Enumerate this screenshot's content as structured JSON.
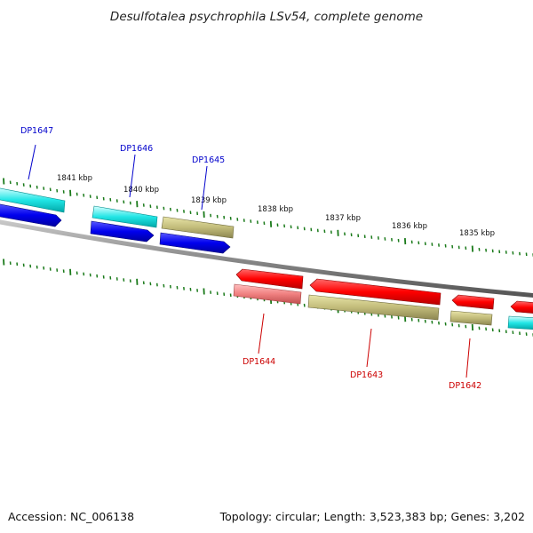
{
  "title": "Desulfotalea psychrophila LSv54, complete genome",
  "footer": {
    "accession": "Accession: NC_006138",
    "summary": "Topology: circular; Length: 3,523,383 bp; Genes: 3,202"
  },
  "colors": {
    "backbone": "#8a8a8a",
    "tick": "#1a7a1a",
    "plus_label": "#0000cc",
    "minus_label": "#cc0000"
  },
  "ticks": [
    {
      "label": "1841 kbp"
    },
    {
      "label": "1840 kbp"
    },
    {
      "label": "1839 kbp"
    },
    {
      "label": "1838 kbp"
    },
    {
      "label": "1837 kbp"
    },
    {
      "label": "1836 kbp"
    },
    {
      "label": "1835 kbp"
    }
  ],
  "gene_labels": [
    {
      "text": "DP1647",
      "strand": "plus"
    },
    {
      "text": "DP1646",
      "strand": "plus"
    },
    {
      "text": "DP1645",
      "strand": "plus"
    },
    {
      "text": "DP1644",
      "strand": "minus"
    },
    {
      "text": "DP1643",
      "strand": "minus"
    },
    {
      "text": "DP1642",
      "strand": "minus"
    }
  ]
}
